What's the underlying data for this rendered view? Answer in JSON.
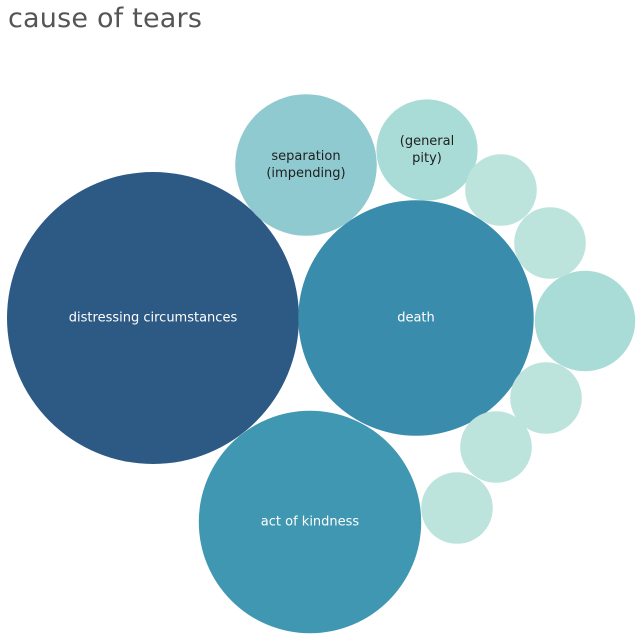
{
  "chart_data": {
    "type": "packed-bubble",
    "title": "cause of tears",
    "bubbles": [
      {
        "label": "distressing circumstances",
        "size": 100,
        "color": "#2d5985",
        "text_color": "#ffffff"
      },
      {
        "label": "death",
        "size": 65,
        "color": "#3a8cad",
        "text_color": "#ffffff"
      },
      {
        "label": "act of kindness",
        "size": 58,
        "color": "#3f97b1",
        "text_color": "#ffffff"
      },
      {
        "label": "separation (impending)",
        "size": 23.5,
        "color": "#8fcad0",
        "text_color": "#1f1f1f"
      },
      {
        "label": "(general pity)",
        "size": 12,
        "color": "#a9dcd6",
        "text_color": "#1f1f1f"
      },
      {
        "label": "",
        "size": 11.8,
        "color": "#a9dcd6",
        "text_color": "#1f1f1f"
      },
      {
        "label": "",
        "size": 6,
        "color": "#bce4dc",
        "text_color": "#1f1f1f"
      },
      {
        "label": "",
        "size": 6,
        "color": "#bce4dc",
        "text_color": "#1f1f1f"
      },
      {
        "label": "",
        "size": 6,
        "color": "#bce4dc",
        "text_color": "#1f1f1f"
      },
      {
        "label": "",
        "size": 6,
        "color": "#bce4dc",
        "text_color": "#1f1f1f"
      },
      {
        "label": "",
        "size": 6,
        "color": "#bce4dc",
        "text_color": "#1f1f1f"
      }
    ]
  }
}
